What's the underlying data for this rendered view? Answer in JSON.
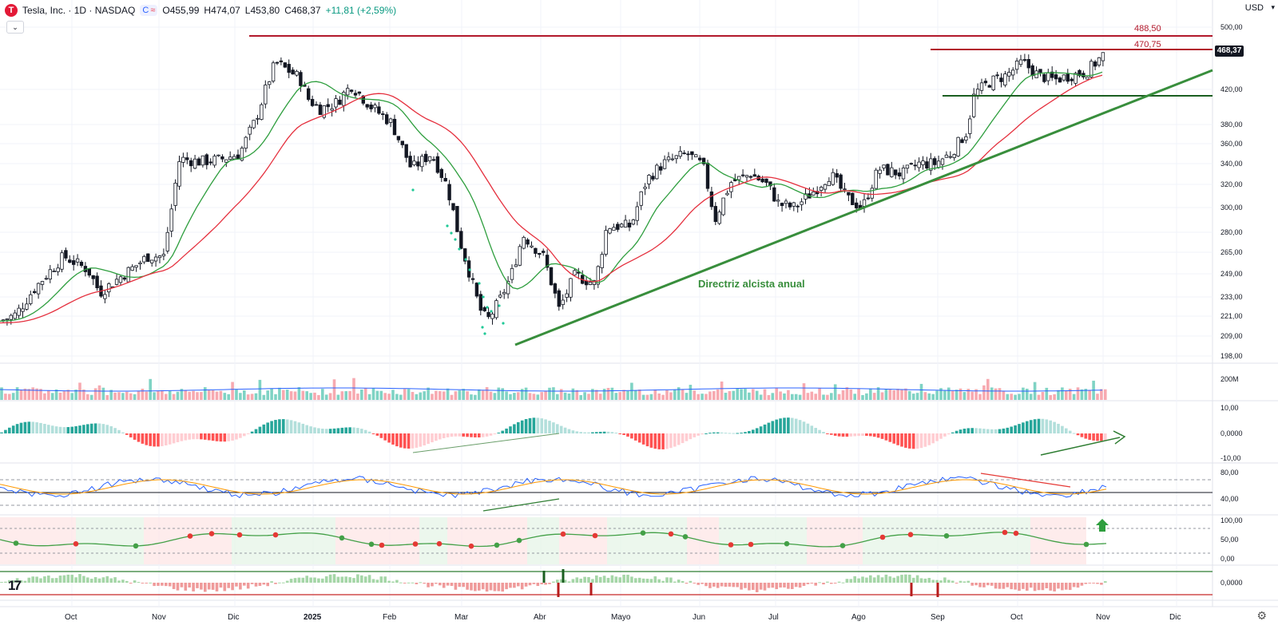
{
  "header": {
    "logo_letter": "T",
    "symbol": "Tesla, Inc. · 1D · NASDAQ",
    "badge_left": "C",
    "badge_right": "≈",
    "open": "O455,99",
    "high": "H474,07",
    "low": "L453,80",
    "close": "C468,37",
    "change": "+11,81 (+2,59%)",
    "collapse_glyph": "⌄"
  },
  "currency": "USD",
  "currency_caret": "▾",
  "price_axis": [
    "500,00",
    "420,00",
    "380,00",
    "360,00",
    "340,00",
    "320,00",
    "300,00",
    "280,00",
    "265,00",
    "249,00",
    "233,00",
    "221,00",
    "209,00",
    "198,00"
  ],
  "levels": [
    {
      "value": 488.5,
      "label": "488,50",
      "color": "#b2182b"
    },
    {
      "value": 470.75,
      "label": "470,75",
      "color": "#b2182b"
    },
    {
      "value": 413.0,
      "label": "",
      "color": "#1b5e20"
    }
  ],
  "last_price_label": "468,37",
  "annotation": "Directriz alcista anual",
  "volume_pane": {
    "label": "200M"
  },
  "macd_pane": {
    "labels": [
      "10,00",
      "0,0000",
      "-10,00"
    ]
  },
  "rsi_pane": {
    "labels": [
      "80,00",
      "40,00"
    ]
  },
  "stoch_pane": {
    "labels": [
      "100,00",
      "50,00",
      "0,00"
    ]
  },
  "bottom_pane": {
    "labels": [
      "0,0000"
    ]
  },
  "time_axis": [
    "Oct",
    "Nov",
    "Dic",
    "2025",
    "Feb",
    "Mar",
    "Abr",
    "Mayo",
    "Jun",
    "Jul",
    "Ago",
    "Sep",
    "Oct",
    "Nov",
    "Dic"
  ],
  "time_axis_bold": "2025",
  "icons": {
    "settings": "⚙",
    "arrow": "up-arrow-icon",
    "tv_logo": "17"
  },
  "colors": {
    "up": "#089981",
    "down": "#f23645",
    "ma_fast": "#2e9e3e",
    "ma_slow": "#e5303e",
    "trend": "#388e3c",
    "grid": "#f0f3fa"
  }
}
